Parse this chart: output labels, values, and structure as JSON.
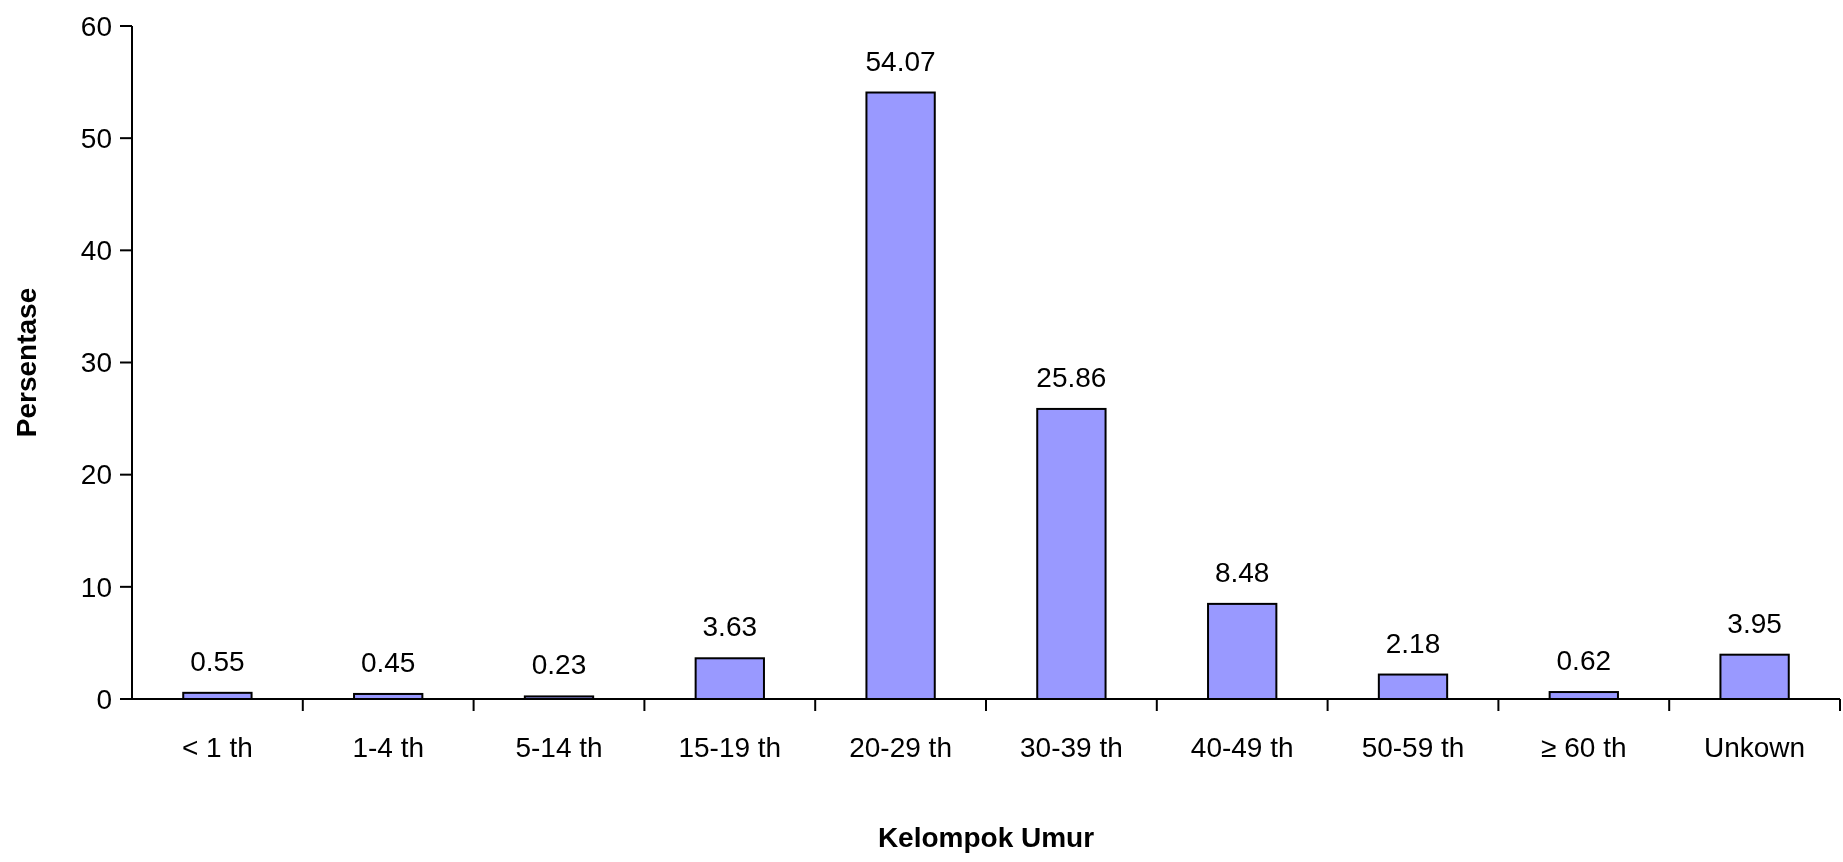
{
  "chart_data": {
    "type": "bar",
    "xlabel": "Kelompok Umur",
    "ylabel": "Persentase",
    "categories": [
      "< 1 th",
      "1-4 th",
      "5-14 th",
      "15-19 th",
      "20-29 th",
      "30-39 th",
      "40-49 th",
      "50-59 th",
      "≥ 60 th",
      "Unkown"
    ],
    "values": [
      0.55,
      0.45,
      0.23,
      3.63,
      54.07,
      25.86,
      8.48,
      2.18,
      0.62,
      3.95
    ],
    "color": "#9999ff",
    "ylim": [
      0,
      60
    ],
    "yticks": [
      0,
      10,
      20,
      30,
      40,
      50,
      60
    ],
    "data_labels": true
  }
}
